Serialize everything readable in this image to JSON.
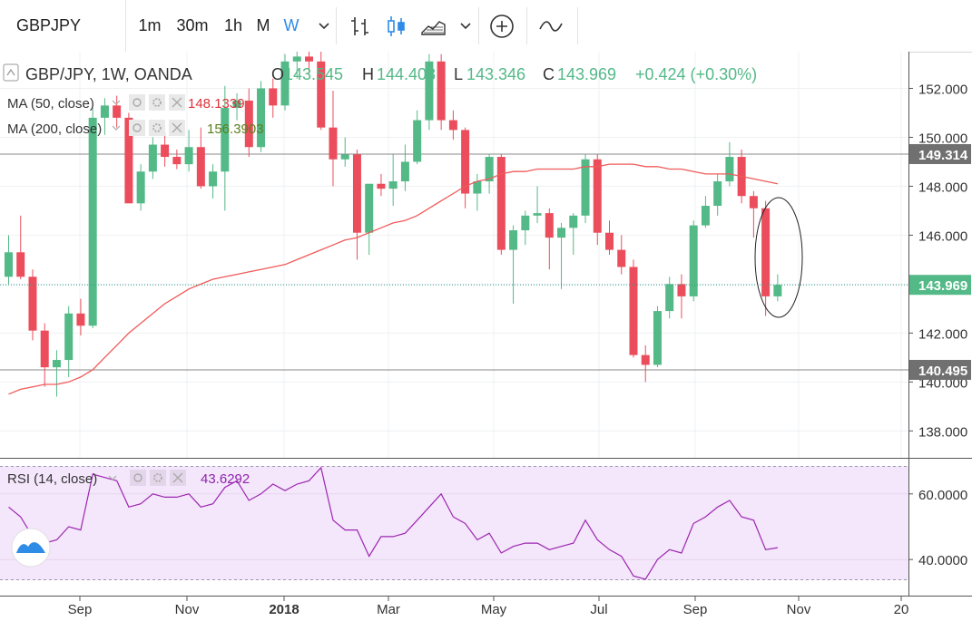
{
  "toolbar": {
    "symbol": "GBPJPY",
    "intervals": [
      "1m",
      "30m",
      "1h",
      "M",
      "W"
    ],
    "active_interval": "W",
    "icons": [
      "chevron-down-icon",
      "bar-style-icon",
      "candle-style-icon",
      "area-style-icon",
      "chevron-down-icon",
      "add-compare-icon",
      "indicators-icon"
    ]
  },
  "legend": {
    "title": "GBP/JPY, 1W, OANDA",
    "o_label": "O",
    "o_value": "143.545",
    "h_label": "H",
    "h_value": "144.408",
    "l_label": "L",
    "l_value": "143.346",
    "c_label": "C",
    "c_value": "143.969",
    "change": "+0.424 (+0.30%)",
    "ma50_label": "MA (50, close)",
    "ma50_value": "148.1339",
    "ma200_label": "MA (200, close)",
    "ma200_value": "156.3903",
    "rsi_label": "RSI (14, close)",
    "rsi_value": "43.6292"
  },
  "colors": {
    "up": "#53b987",
    "down": "#eb4d5c",
    "ma50": "#f05a5a",
    "ma200": "#5b7f1c",
    "rsi_line": "#9c27b0",
    "rsi_bg": "#f4e6fb",
    "price_line": "#2ea085",
    "level_line": "#888888"
  },
  "chart_data": [
    {
      "type": "candlestick",
      "title": "GBP/JPY, 1W, OANDA",
      "x_tick_labels": [
        "Sep",
        "Nov",
        "2018",
        "Mar",
        "May",
        "Jul",
        "Sep",
        "Nov",
        "20"
      ],
      "y_tick_labels": [
        "138.000",
        "140.000",
        "142.000",
        "144.000",
        "146.000",
        "148.000",
        "150.000",
        "152.000"
      ],
      "ylim": [
        136.9,
        153.5
      ],
      "candles": [
        {
          "o": 144.3,
          "h": 146.0,
          "l": 144.0,
          "c": 145.3
        },
        {
          "o": 145.3,
          "h": 146.8,
          "l": 144.2,
          "c": 144.3
        },
        {
          "o": 144.3,
          "h": 144.6,
          "l": 141.7,
          "c": 142.1
        },
        {
          "o": 142.1,
          "h": 142.4,
          "l": 139.8,
          "c": 140.6
        },
        {
          "o": 140.6,
          "h": 141.3,
          "l": 139.4,
          "c": 140.9
        },
        {
          "o": 140.9,
          "h": 143.1,
          "l": 140.2,
          "c": 142.8
        },
        {
          "o": 142.8,
          "h": 143.4,
          "l": 141.9,
          "c": 142.3
        },
        {
          "o": 142.3,
          "h": 151.2,
          "l": 142.2,
          "c": 150.8
        },
        {
          "o": 150.8,
          "h": 151.6,
          "l": 150.1,
          "c": 151.3
        },
        {
          "o": 151.3,
          "h": 151.7,
          "l": 150.4,
          "c": 150.8
        },
        {
          "o": 150.8,
          "h": 151.0,
          "l": 147.4,
          "c": 147.3
        },
        {
          "o": 147.3,
          "h": 148.9,
          "l": 147.0,
          "c": 148.6
        },
        {
          "o": 148.6,
          "h": 150.0,
          "l": 148.3,
          "c": 149.7
        },
        {
          "o": 149.7,
          "h": 150.2,
          "l": 148.8,
          "c": 149.2
        },
        {
          "o": 149.2,
          "h": 149.5,
          "l": 148.7,
          "c": 148.9
        },
        {
          "o": 148.9,
          "h": 150.3,
          "l": 148.6,
          "c": 149.6
        },
        {
          "o": 149.6,
          "h": 150.4,
          "l": 147.9,
          "c": 148.0
        },
        {
          "o": 148.0,
          "h": 148.9,
          "l": 147.5,
          "c": 148.6
        },
        {
          "o": 148.6,
          "h": 152.1,
          "l": 147.0,
          "c": 151.2
        },
        {
          "o": 151.2,
          "h": 151.8,
          "l": 150.7,
          "c": 151.5
        },
        {
          "o": 151.5,
          "h": 152.0,
          "l": 149.2,
          "c": 149.6
        },
        {
          "o": 149.6,
          "h": 152.3,
          "l": 149.4,
          "c": 152.0
        },
        {
          "o": 152.0,
          "h": 152.4,
          "l": 150.8,
          "c": 151.3
        },
        {
          "o": 151.3,
          "h": 153.4,
          "l": 151.1,
          "c": 153.1
        },
        {
          "o": 153.1,
          "h": 153.6,
          "l": 152.4,
          "c": 153.3
        },
        {
          "o": 153.3,
          "h": 153.8,
          "l": 152.6,
          "c": 153.1
        },
        {
          "o": 153.1,
          "h": 153.6,
          "l": 150.3,
          "c": 150.4
        },
        {
          "o": 150.4,
          "h": 151.9,
          "l": 148.0,
          "c": 149.1
        },
        {
          "o": 149.1,
          "h": 150.0,
          "l": 148.8,
          "c": 149.3
        },
        {
          "o": 149.3,
          "h": 149.5,
          "l": 145.0,
          "c": 146.1
        },
        {
          "o": 146.1,
          "h": 148.0,
          "l": 145.2,
          "c": 148.1
        },
        {
          "o": 148.1,
          "h": 148.5,
          "l": 147.6,
          "c": 147.9
        },
        {
          "o": 147.9,
          "h": 149.3,
          "l": 147.2,
          "c": 148.2
        },
        {
          "o": 148.2,
          "h": 149.7,
          "l": 147.8,
          "c": 149.0
        },
        {
          "o": 149.0,
          "h": 151.1,
          "l": 148.9,
          "c": 150.7
        },
        {
          "o": 150.7,
          "h": 153.4,
          "l": 150.3,
          "c": 153.1
        },
        {
          "o": 153.1,
          "h": 153.4,
          "l": 150.3,
          "c": 150.7
        },
        {
          "o": 150.7,
          "h": 151.1,
          "l": 149.9,
          "c": 150.3
        },
        {
          "o": 150.3,
          "h": 150.4,
          "l": 147.1,
          "c": 147.7
        },
        {
          "o": 147.7,
          "h": 148.5,
          "l": 147.0,
          "c": 148.2
        },
        {
          "o": 148.2,
          "h": 149.3,
          "l": 147.7,
          "c": 149.2
        },
        {
          "o": 149.2,
          "h": 149.3,
          "l": 145.2,
          "c": 145.4
        },
        {
          "o": 145.4,
          "h": 146.4,
          "l": 143.2,
          "c": 146.2
        },
        {
          "o": 146.2,
          "h": 147.0,
          "l": 145.6,
          "c": 146.8
        },
        {
          "o": 146.8,
          "h": 148.0,
          "l": 146.5,
          "c": 146.9
        },
        {
          "o": 146.9,
          "h": 147.1,
          "l": 144.6,
          "c": 145.9
        },
        {
          "o": 145.9,
          "h": 146.5,
          "l": 143.8,
          "c": 146.3
        },
        {
          "o": 146.3,
          "h": 146.9,
          "l": 145.2,
          "c": 146.8
        },
        {
          "o": 146.8,
          "h": 149.3,
          "l": 146.5,
          "c": 149.1
        },
        {
          "o": 149.1,
          "h": 149.3,
          "l": 145.6,
          "c": 146.1
        },
        {
          "o": 146.1,
          "h": 146.6,
          "l": 145.2,
          "c": 145.4
        },
        {
          "o": 145.4,
          "h": 146.0,
          "l": 144.4,
          "c": 144.7
        },
        {
          "o": 144.7,
          "h": 145.0,
          "l": 141.0,
          "c": 141.1
        },
        {
          "o": 141.1,
          "h": 141.5,
          "l": 140.0,
          "c": 140.7
        },
        {
          "o": 140.7,
          "h": 143.1,
          "l": 140.6,
          "c": 142.9
        },
        {
          "o": 142.9,
          "h": 144.3,
          "l": 142.6,
          "c": 144.0
        },
        {
          "o": 144.0,
          "h": 144.4,
          "l": 142.6,
          "c": 143.5
        },
        {
          "o": 143.5,
          "h": 146.6,
          "l": 143.3,
          "c": 146.4
        },
        {
          "o": 146.4,
          "h": 147.6,
          "l": 146.3,
          "c": 147.2
        },
        {
          "o": 147.2,
          "h": 148.5,
          "l": 146.8,
          "c": 148.2
        },
        {
          "o": 148.2,
          "h": 149.8,
          "l": 148.0,
          "c": 149.2
        },
        {
          "o": 149.2,
          "h": 149.5,
          "l": 147.3,
          "c": 147.6
        },
        {
          "o": 147.6,
          "h": 147.8,
          "l": 145.9,
          "c": 147.1
        },
        {
          "o": 147.1,
          "h": 147.4,
          "l": 142.7,
          "c": 143.5
        },
        {
          "o": 143.5,
          "h": 144.4,
          "l": 143.3,
          "c": 143.97
        }
      ],
      "ma50": [
        139.5,
        139.7,
        139.8,
        139.9,
        139.9,
        140.0,
        140.2,
        140.5,
        141.0,
        141.5,
        142.0,
        142.4,
        142.8,
        143.2,
        143.5,
        143.8,
        144.0,
        144.2,
        144.3,
        144.4,
        144.5,
        144.6,
        144.7,
        144.8,
        145.0,
        145.2,
        145.4,
        145.6,
        145.8,
        145.9,
        146.1,
        146.3,
        146.5,
        146.6,
        146.8,
        147.1,
        147.4,
        147.7,
        148.0,
        148.2,
        148.3,
        148.5,
        148.6,
        148.6,
        148.7,
        148.7,
        148.7,
        148.7,
        148.8,
        148.8,
        148.9,
        148.9,
        148.9,
        148.8,
        148.8,
        148.7,
        148.7,
        148.6,
        148.5,
        148.5,
        148.5,
        148.4,
        148.3,
        148.2,
        148.1
      ],
      "horizontal_levels": [
        149.314,
        140.495
      ],
      "last_price": 143.969
    },
    {
      "type": "line",
      "title": "RSI (14, close)",
      "y_tick_labels": [
        "40.0000",
        "60.0000"
      ],
      "ylim": [
        29,
        71
      ],
      "rsi": [
        56,
        53,
        47,
        45,
        46,
        50,
        49,
        66,
        65,
        64,
        56,
        57,
        60,
        59,
        59,
        60,
        56,
        57,
        62,
        64,
        58,
        60,
        63,
        61,
        63,
        64,
        68,
        52,
        49,
        49,
        41,
        47,
        47,
        48,
        52,
        56,
        60,
        53,
        51,
        46,
        48,
        42,
        44,
        45,
        45,
        43,
        44,
        45,
        52,
        46,
        43,
        41,
        35,
        34,
        40,
        43,
        42,
        51,
        53,
        56,
        58,
        53,
        52,
        43,
        43.6292
      ]
    }
  ]
}
